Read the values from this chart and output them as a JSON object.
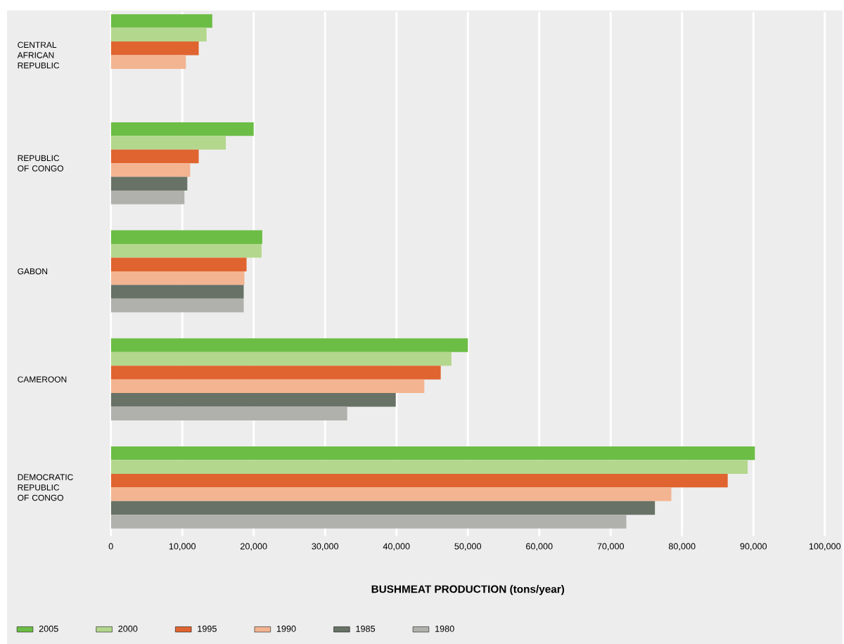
{
  "chart_data": {
    "type": "bar",
    "orientation": "horizontal",
    "xlabel": "BUSHMEAT PRODUCTION (tons/year)",
    "categories": [
      "CENTRAL AFRICAN REPUBLIC",
      "REPUBLIC OF CONGO",
      "GABON",
      "CAMEROON",
      "DEMOCRATIC REPUBLIC OF CONGO"
    ],
    "series": [
      {
        "name": "2005",
        "color": "#6cbd45",
        "values": [
          14200,
          20000,
          21200,
          50000,
          90200
        ]
      },
      {
        "name": "2000",
        "color": "#b3d78d",
        "values": [
          13400,
          16100,
          21100,
          47700,
          89200
        ]
      },
      {
        "name": "1995",
        "color": "#e06430",
        "values": [
          12300,
          12300,
          19000,
          46200,
          86400
        ]
      },
      {
        "name": "1990",
        "color": "#f3b491",
        "values": [
          10500,
          11100,
          18700,
          43900,
          78500
        ]
      },
      {
        "name": "1985",
        "color": "#687266",
        "values": [
          null,
          10700,
          18600,
          39900,
          76200
        ]
      },
      {
        "name": "1980",
        "color": "#b0b1ac",
        "values": [
          null,
          10300,
          18600,
          33100,
          72200
        ]
      }
    ],
    "xlim": [
      0,
      100000
    ],
    "xticks": [
      0,
      {
        "value": 10000,
        "label": "10,000"
      },
      {
        "value": 20000,
        "label": "20,000"
      },
      {
        "value": 30000,
        "label": "30,000"
      },
      {
        "value": 40000,
        "label": "40,000"
      },
      {
        "value": 50000,
        "label": "50,000"
      },
      {
        "value": 60000,
        "label": "60,000"
      },
      {
        "value": 70000,
        "label": "70,000"
      },
      {
        "value": 80000,
        "label": "80,000"
      },
      {
        "value": 90000,
        "label": "90,000"
      },
      {
        "value": 100000,
        "label": "100,000"
      }
    ],
    "grid": "x",
    "legend": "bottom"
  }
}
